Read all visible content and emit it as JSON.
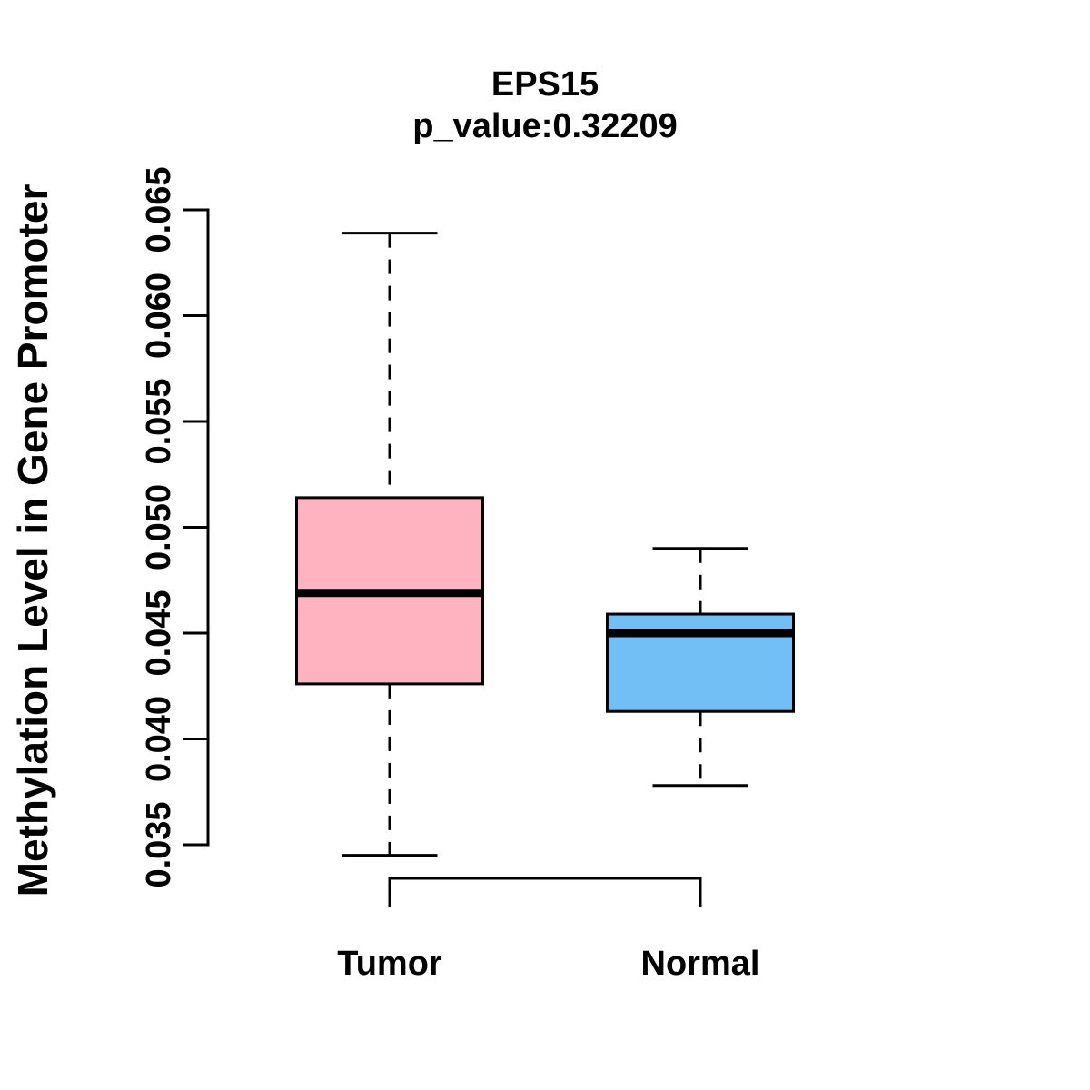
{
  "figure": {
    "background": "#FFFFFF",
    "text_color": "#000000"
  },
  "chart_data": {
    "type": "boxplot",
    "title": "EPS15",
    "subtitle": "p_value:0.32209",
    "ylabel": "Methylation Level in Gene Promoter",
    "xlabel": "",
    "categories": [
      "Tumor",
      "Normal"
    ],
    "ylim": [
      0.035,
      0.065
    ],
    "yticks": [
      0.065,
      0.06,
      0.055,
      0.05,
      0.045,
      0.04,
      0.035
    ],
    "ytick_labels": [
      "0.065",
      "0.060",
      "0.055",
      "0.050",
      "0.045",
      "0.040",
      "0.035"
    ],
    "grid": false,
    "legend": false,
    "series": [
      {
        "name": "Tumor",
        "color": "#FFB3C1",
        "whisker_low": 0.0345,
        "q1": 0.0426,
        "median": 0.0469,
        "q3": 0.0514,
        "whisker_high": 0.0639
      },
      {
        "name": "Normal",
        "color": "#72BFF5",
        "whisker_low": 0.0378,
        "q1": 0.0413,
        "median": 0.045,
        "q3": 0.0459,
        "whisker_high": 0.049
      }
    ],
    "comparison_bracket": {
      "from": "Tumor",
      "to": "Normal"
    },
    "stroke_color": "#000000"
  }
}
